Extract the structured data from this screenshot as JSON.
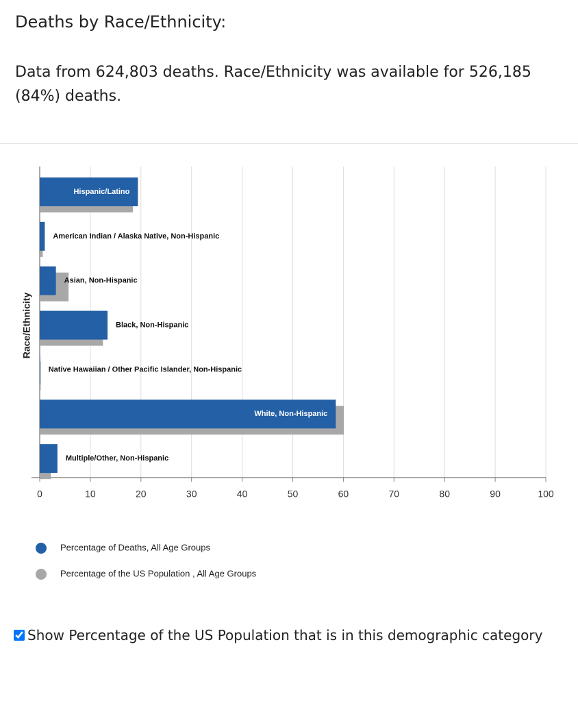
{
  "header": {
    "title": "Deaths by Race/Ethnicity:",
    "subtitle": "Data from 624,803 deaths. Race/Ethnicity was available for 526,185 (84%) deaths."
  },
  "chart_data": {
    "type": "hbar",
    "ylabel": "Race/Ethnicity",
    "categories": [
      "Hispanic/Latino",
      "American Indian / Alaska Native, Non-Hispanic",
      "Asian, Non-Hispanic",
      "Black, Non-Hispanic",
      "Native Hawaiian / Other Pacific Islander, Non-Hispanic",
      "White, Non-Hispanic",
      "Multiple/Other, Non-Hispanic"
    ],
    "series": [
      {
        "name": "Percentage of Deaths, All Age Groups",
        "color": "#2360a5",
        "values": [
          19.4,
          1.0,
          3.2,
          13.4,
          0.1,
          58.5,
          3.5
        ]
      },
      {
        "name": "Percentage of the US Population , All Age Groups",
        "color": "#a8a8a8",
        "values": [
          18.4,
          0.6,
          5.7,
          12.5,
          0.2,
          60.1,
          2.2
        ]
      }
    ],
    "xlim": [
      0,
      100
    ],
    "xticks": [
      0,
      10,
      20,
      30,
      40,
      50,
      60,
      70,
      80,
      90,
      100
    ],
    "grid": true
  },
  "checkbox": {
    "label": "Show Percentage of the US Population that is in this demographic category",
    "checked": true
  }
}
